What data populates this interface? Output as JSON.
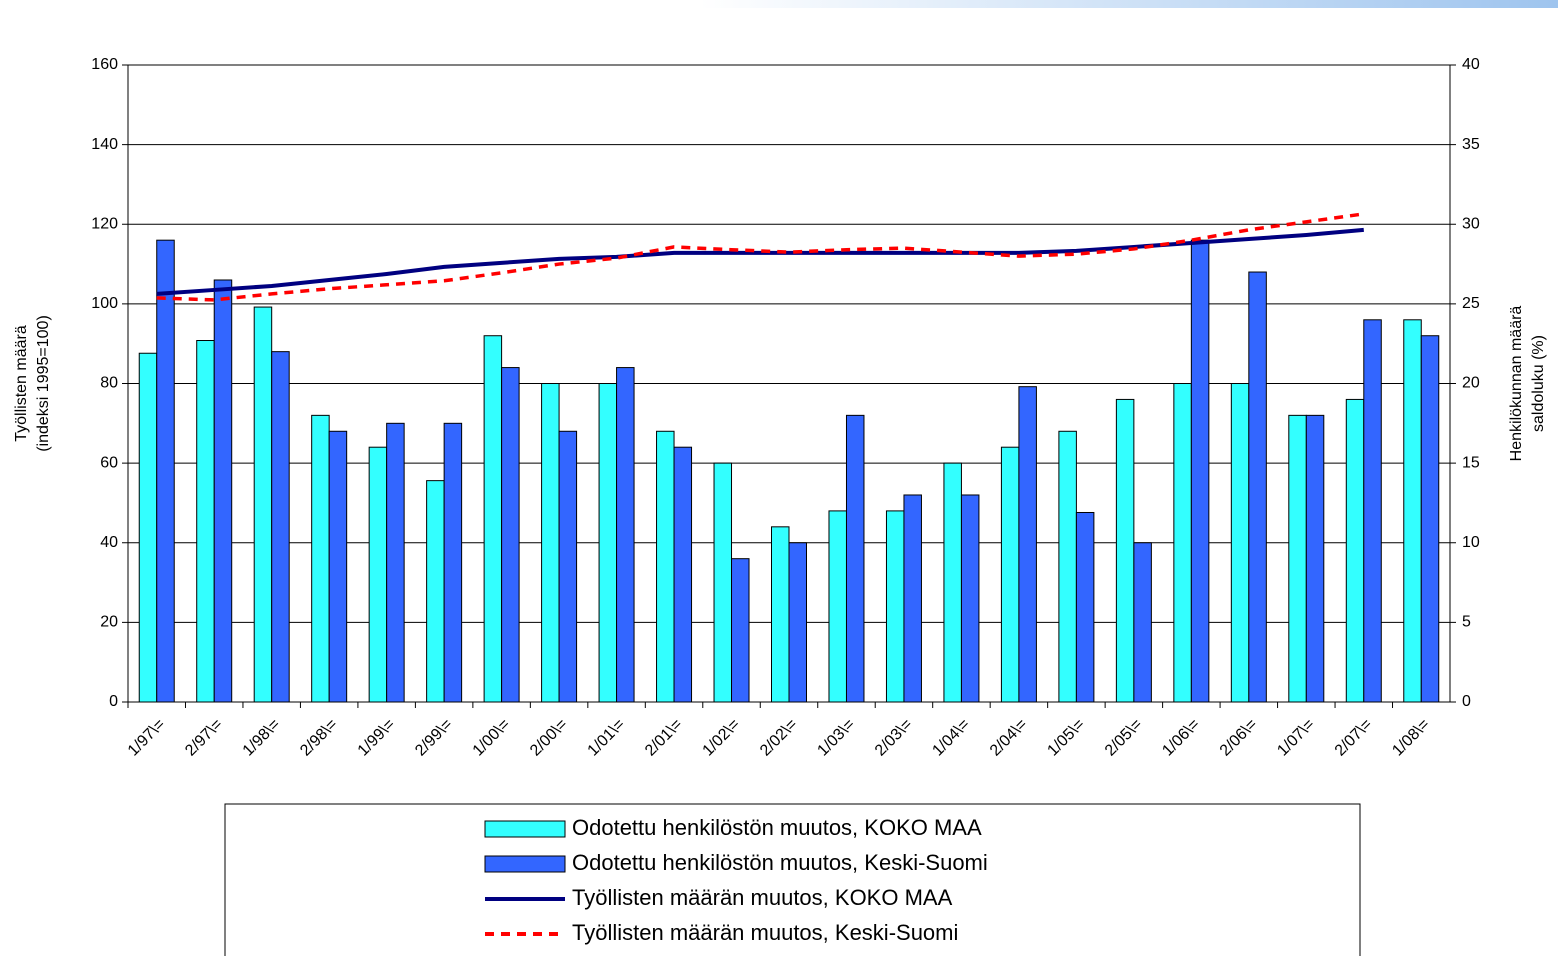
{
  "chart_data": {
    "type": "combo",
    "ylabel": [
      "Työllisten määrä",
      "(indeksi 1995=100)"
    ],
    "y2label": [
      "Henkilökunnan määrä",
      "saldoluku (%)"
    ],
    "categories": [
      "1/97\\=",
      "2/97\\=",
      "1/98\\=",
      "2/98\\=",
      "1/99\\=",
      "2/99\\=",
      "1/00\\=",
      "2/00\\=",
      "1/01\\=",
      "2/01\\=",
      "1/02\\=",
      "2/02\\=",
      "1/03\\=",
      "2/03\\=",
      "1/04\\=",
      "2/04\\=",
      "1/05\\=",
      "2/05\\=",
      "1/06\\=",
      "2/06\\=",
      "1/07\\=",
      "2/07\\=",
      "1/08\\="
    ],
    "ylim": [
      0,
      160
    ],
    "yticks": [
      0,
      20,
      40,
      60,
      80,
      100,
      120,
      140,
      160
    ],
    "y2lim": [
      0,
      40
    ],
    "y2ticks": [
      0,
      5,
      10,
      15,
      20,
      25,
      30,
      35,
      40
    ],
    "grid": true,
    "series": [
      {
        "name": "Odotettu henkilöstön muutos, KOKO MAA",
        "type": "bar",
        "axis": "y2",
        "color": "#33ffff",
        "values": [
          21.9,
          22.7,
          24.8,
          18,
          16,
          13.9,
          23,
          20,
          20,
          17,
          15,
          11,
          12,
          12,
          15,
          16,
          17,
          19,
          20,
          20,
          18,
          19,
          24
        ]
      },
      {
        "name": "Odotettu henkilöstön muutos, Keski-Suomi",
        "type": "bar",
        "axis": "y2",
        "color": "#3366ff",
        "values": [
          29,
          26.5,
          22,
          17,
          17.5,
          17.5,
          21,
          17,
          21,
          16,
          9,
          10,
          18,
          13,
          13,
          19.8,
          11.9,
          10,
          29,
          27,
          18,
          24,
          23
        ]
      },
      {
        "name": "Työllisten määrän muutos, KOKO MAA",
        "type": "line",
        "dashed": false,
        "color": "#000080",
        "values": [
          102.5,
          103.5,
          104.5,
          106,
          107.5,
          109.3,
          110.3,
          111.3,
          111.8,
          112.8,
          112.8,
          112.8,
          112.8,
          112.8,
          112.8,
          112.8,
          113.3,
          114.3,
          115.3,
          116.3,
          117.3,
          118.6,
          null
        ]
      },
      {
        "name": "Työllisten määrän muutos, Keski-Suomi",
        "type": "line",
        "dashed": true,
        "color": "#ff0000",
        "values": [
          101.5,
          101,
          102.5,
          103.8,
          104.8,
          105.8,
          107.8,
          110,
          111.5,
          114.3,
          113.6,
          113,
          113.6,
          114,
          113,
          112,
          112.5,
          113.8,
          116,
          118.6,
          120.6,
          122.6,
          null
        ]
      }
    ]
  }
}
